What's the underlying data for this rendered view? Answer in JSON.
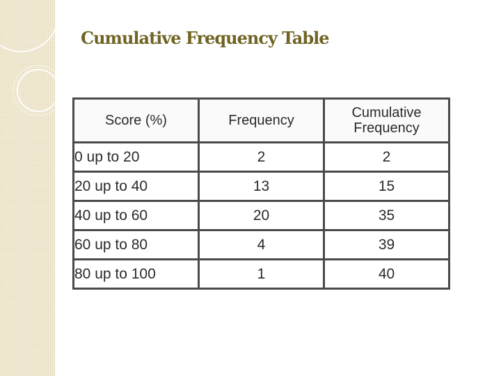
{
  "slide": {
    "title": "Cumulative Frequency Table"
  },
  "table": {
    "headers": {
      "score": "Score (%)",
      "frequency": "Frequency",
      "cumulative_line1": "Cumulative",
      "cumulative_line2": "Frequency"
    },
    "rows": [
      {
        "score": "0 up to 20",
        "frequency": "2",
        "cumulative": "2"
      },
      {
        "score": "20 up to 40",
        "frequency": "13",
        "cumulative": "15"
      },
      {
        "score": "40 up to 60",
        "frequency": "20",
        "cumulative": "35"
      },
      {
        "score": "60 up to 80",
        "frequency": "4",
        "cumulative": "39"
      },
      {
        "score": "80 up to 100",
        "frequency": "1",
        "cumulative": "40"
      }
    ]
  },
  "colors": {
    "title": "#6f6424",
    "band": "#f3ecd7",
    "border": "#4a4a4a"
  }
}
